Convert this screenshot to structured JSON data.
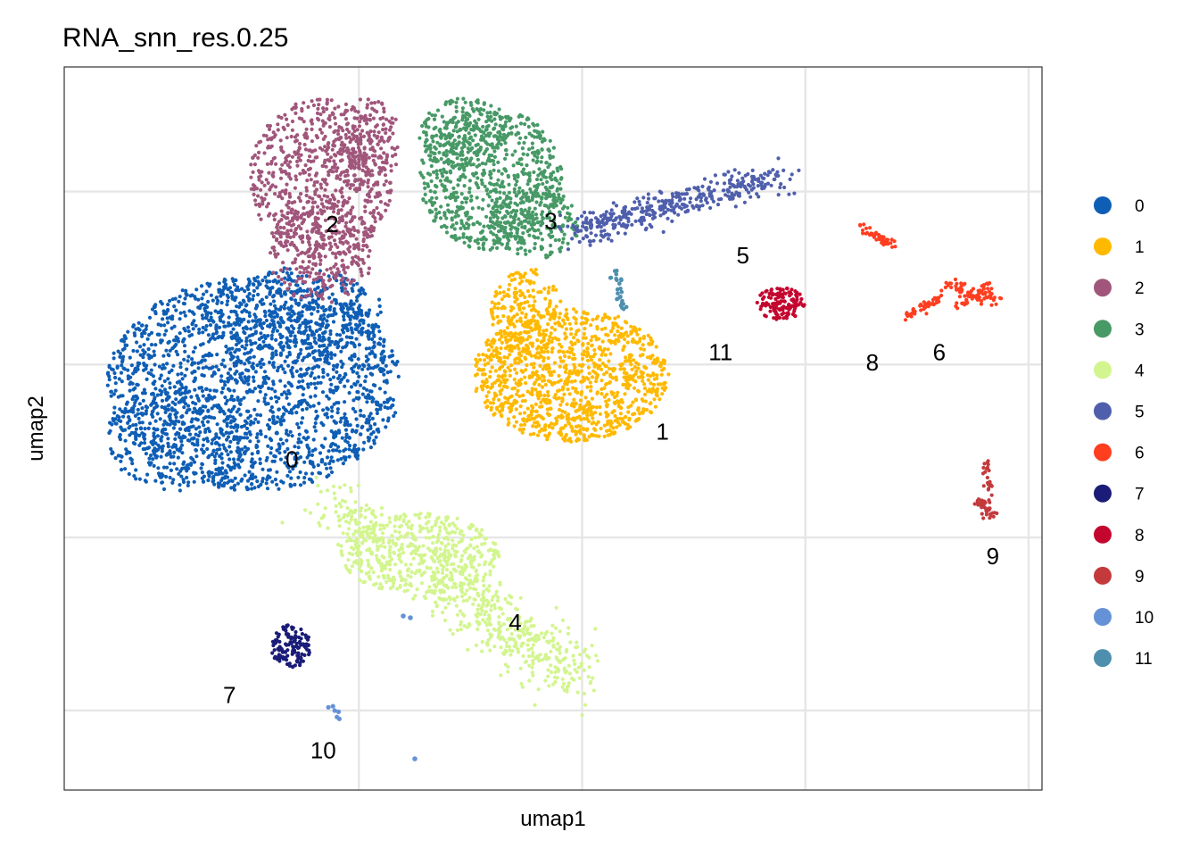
{
  "chart_data": {
    "type": "scatter",
    "title": "RNA_snn_res.0.25",
    "xlabel": "umap1",
    "ylabel": "umap2",
    "xlim": [
      -6.6,
      15.3
    ],
    "ylim": [
      -9.3,
      11.6
    ],
    "grid": true,
    "legend_position": "right",
    "clusters": [
      {
        "name": "0",
        "color": "#0F5EB5",
        "center": [
          -1.5,
          0.2
        ]
      },
      {
        "name": "1",
        "color": "#FFB900",
        "center": [
          6.8,
          1.0
        ]
      },
      {
        "name": "2",
        "color": "#A0567B",
        "center": [
          -0.6,
          7.0
        ]
      },
      {
        "name": "3",
        "color": "#479966",
        "center": [
          4.3,
          7.1
        ]
      },
      {
        "name": "4",
        "color": "#D3F58F",
        "center": [
          3.5,
          -4.5
        ]
      },
      {
        "name": "5",
        "color": "#4F5FAC",
        "center": [
          8.6,
          6.1
        ]
      },
      {
        "name": "6",
        "color": "#FF3E20",
        "center": [
          13.0,
          3.3
        ]
      },
      {
        "name": "7",
        "color": "#1A1C78",
        "center": [
          -2.9,
          -6.6
        ]
      },
      {
        "name": "8",
        "color": "#C4062F",
        "center": [
          11.5,
          3.0
        ]
      },
      {
        "name": "9",
        "color": "#C43A3C",
        "center": [
          14.2,
          -2.6
        ]
      },
      {
        "name": "10",
        "color": "#6592D6",
        "center": [
          -0.8,
          -8.2
        ]
      },
      {
        "name": "11",
        "color": "#4E8FAE",
        "center": [
          8.1,
          3.3
        ]
      }
    ]
  }
}
